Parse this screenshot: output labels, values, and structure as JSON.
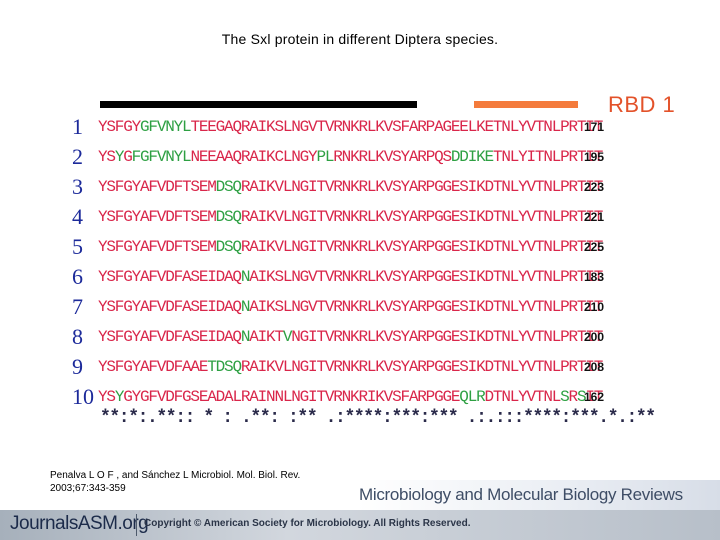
{
  "title": "The Sxl protein in different Diptera species.",
  "rbd_label": "RBD 1",
  "colors": {
    "sequence_text": "#d9264a",
    "highlight": "#2ea043",
    "rbd": "#e3522a",
    "row_numbers": "#1c2a9a"
  },
  "rows": [
    {
      "num": "1",
      "segments": [
        {
          "t": "YSFGY",
          "hl": false
        },
        {
          "t": "GFVNYL",
          "hl": true
        },
        {
          "t": "TEEGAQRAIKSLNGVTVRNKRLKVSFARPAGEELKETNLYVTNLPRTIT",
          "hl": false
        }
      ],
      "len": "171"
    },
    {
      "num": "2",
      "segments": [
        {
          "t": "YS",
          "hl": false
        },
        {
          "t": "Y",
          "hl": true
        },
        {
          "t": "G",
          "hl": false
        },
        {
          "t": "FGFVNYL",
          "hl": true
        },
        {
          "t": "NEEAAQRAIKCLNGY",
          "hl": false
        },
        {
          "t": "PL",
          "hl": true
        },
        {
          "t": "RNKRLKVSYARPQS",
          "hl": false
        },
        {
          "t": "DDIKE",
          "hl": true
        },
        {
          "t": "TNLYITNLPRTIT",
          "hl": false
        }
      ],
      "len": "195"
    },
    {
      "num": "3",
      "segments": [
        {
          "t": "YSFGYAFVDFTSEM",
          "hl": false
        },
        {
          "t": "DSQ",
          "hl": true
        },
        {
          "t": "RAIKVLNGITVRNKRLKVSYARPGGESIKDTNLYVTNLPRTIT",
          "hl": false
        }
      ],
      "len": "223"
    },
    {
      "num": "4",
      "segments": [
        {
          "t": "YSFGYAFVDFTSEM",
          "hl": false
        },
        {
          "t": "DSQ",
          "hl": true
        },
        {
          "t": "RAIKVLNGITVRNKRLKVSYARPGGESIKDTNLYVTNLPRTIT",
          "hl": false
        }
      ],
      "len": "221"
    },
    {
      "num": "5",
      "segments": [
        {
          "t": "YSFGYAFVDFTSEM",
          "hl": false
        },
        {
          "t": "DSQ",
          "hl": true
        },
        {
          "t": "RAIKVLNGITVRNKRLKVSYARPGGESIKDTNLYVTNLPRTIT",
          "hl": false
        }
      ],
      "len": "225"
    },
    {
      "num": "6",
      "segments": [
        {
          "t": "YSFGYAFVDFASEIDAQ",
          "hl": false
        },
        {
          "t": "N",
          "hl": true
        },
        {
          "t": "AIKSLNGVTVRNKRLKVSYARPGGESIKDTNLYVTNLPRTIT",
          "hl": false
        }
      ],
      "len": "183"
    },
    {
      "num": "7",
      "segments": [
        {
          "t": "YSFGYAFVDFASEIDAQ",
          "hl": false
        },
        {
          "t": "N",
          "hl": true
        },
        {
          "t": "AIKSLNGVTVRNKRLKVSYARPGGESIKDTNLYVTNLPRTIT",
          "hl": false
        }
      ],
      "len": "210"
    },
    {
      "num": "8",
      "segments": [
        {
          "t": "YSFGYAFVDFASEIDAQ",
          "hl": false
        },
        {
          "t": "N",
          "hl": true
        },
        {
          "t": "AIKT",
          "hl": false
        },
        {
          "t": "V",
          "hl": true
        },
        {
          "t": "NGITVRNKRLKVSYARPGGESIKDTNLYVTNLPRTIT",
          "hl": false
        }
      ],
      "len": "200"
    },
    {
      "num": "9",
      "segments": [
        {
          "t": "YSFGYAFVDFAAE",
          "hl": false
        },
        {
          "t": "TDSQ",
          "hl": true
        },
        {
          "t": "RAIKVLNGITVRNKRLKVSYARPGGESIKDTNLYVTNLPRTIT",
          "hl": false
        }
      ],
      "len": "208"
    },
    {
      "num": "10",
      "segments": [
        {
          "t": "YS",
          "hl": false
        },
        {
          "t": "Y",
          "hl": true
        },
        {
          "t": "GYGFVDFGSEADALRAINNLNGITVRNKRIKVSFARPGGE",
          "hl": false
        },
        {
          "t": "QLR",
          "hl": true
        },
        {
          "t": "DTNLYVTNL",
          "hl": false
        },
        {
          "t": "S",
          "hl": true
        },
        {
          "t": "R",
          "hl": false
        },
        {
          "t": "S",
          "hl": true
        },
        {
          "t": "IT",
          "hl": false
        }
      ],
      "len": "162"
    }
  ],
  "consensus": "**:*:.**:: * : .**: :** .:****:***:*** .:.:::****:***.*.:**",
  "citation": {
    "line1": "Penalva L O F , and Sánchez L Microbiol. Mol. Biol. Rev.",
    "line2": "2003;67:343-359"
  },
  "journal_name": "Microbiology and Molecular Biology Reviews",
  "footer": {
    "logo": "JournalsASM.org",
    "copyright": "Copyright © American Society for Microbiology. All Rights Reserved."
  }
}
